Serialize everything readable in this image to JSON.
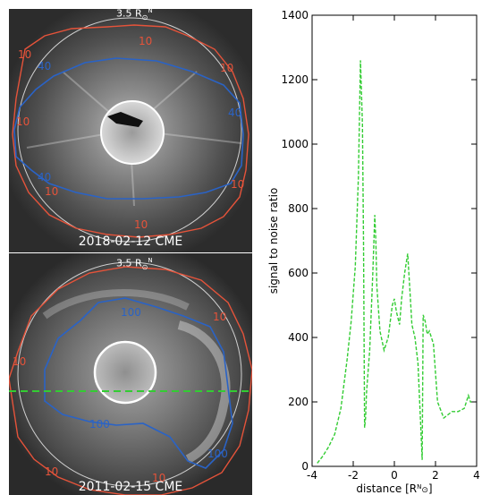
{
  "panels": [
    {
      "date_label": "2018-02-12 CME",
      "radius_label": "3.5 R",
      "contour_outer": "10",
      "contour_inner": "40",
      "colors": {
        "outer": "#e5533a",
        "inner": "#2a63c6"
      }
    },
    {
      "date_label": "2011-02-15 CME",
      "radius_label": "3.5 R",
      "contour_outer": "10",
      "contour_inner": "100",
      "colors": {
        "outer": "#e5533a",
        "inner": "#2a63c6",
        "cut": "#33cc33"
      }
    }
  ],
  "chart_data": {
    "type": "line",
    "xlabel": "distance [R",
    "ylabel": "signal to noise ratio",
    "xlim": [
      -4,
      4
    ],
    "ylim": [
      0,
      1400
    ],
    "xticks": [
      -4,
      -2,
      0,
      2,
      4
    ],
    "yticks": [
      0,
      200,
      400,
      600,
      800,
      1000,
      1200,
      1400
    ],
    "line_style": "dashed",
    "color": "#33cc33",
    "series": [
      {
        "x": [
          -3.75,
          -3.5,
          -3.2,
          -2.9,
          -2.6,
          -2.3,
          -2.1,
          -1.9,
          -1.75,
          -1.65,
          -1.55,
          -1.5,
          -1.45,
          -1.4,
          -1.35,
          -1.2,
          -1.05,
          -0.95,
          -0.9,
          -0.85,
          -0.7,
          -0.5,
          -0.3,
          -0.1,
          0.0,
          0.1,
          0.25,
          0.35,
          0.5,
          0.65,
          0.75,
          0.85,
          1.0,
          1.15,
          1.3,
          1.35,
          1.4,
          1.5,
          1.6,
          1.7,
          1.9,
          2.1,
          2.4,
          2.6,
          2.8,
          3.1,
          3.4,
          3.6,
          3.7,
          3.75
        ],
        "y": [
          10,
          30,
          60,
          100,
          180,
          330,
          450,
          620,
          900,
          1260,
          1060,
          700,
          120,
          150,
          230,
          360,
          600,
          780,
          700,
          560,
          420,
          360,
          400,
          500,
          520,
          480,
          440,
          520,
          600,
          660,
          550,
          440,
          400,
          320,
          100,
          20,
          470,
          450,
          410,
          420,
          380,
          200,
          150,
          160,
          170,
          170,
          180,
          220,
          200,
          200
        ]
      }
    ]
  }
}
